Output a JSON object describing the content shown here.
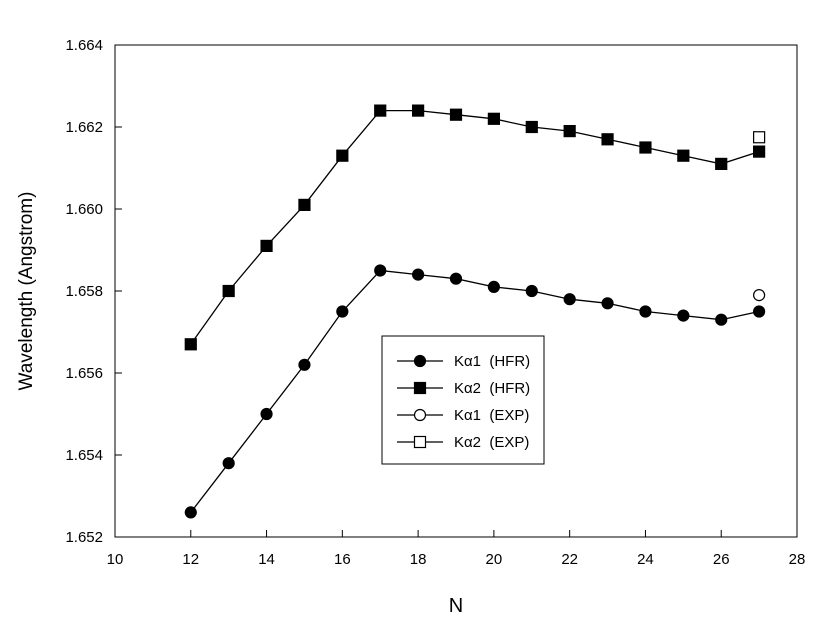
{
  "chart_data": {
    "type": "line",
    "xlabel": "N",
    "ylabel": "Wavelength (Angstrom)",
    "xlim": [
      10,
      28
    ],
    "ylim": [
      1.652,
      1.664
    ],
    "x_ticks": [
      "10",
      "12",
      "14",
      "16",
      "18",
      "20",
      "22",
      "24",
      "26",
      "28"
    ],
    "y_ticks": [
      "1.652",
      "1.654",
      "1.656",
      "1.658",
      "1.660",
      "1.662",
      "1.664"
    ],
    "grid": false,
    "legend_position": "center",
    "series": [
      {
        "name": "Kα1  (HFR)",
        "marker": "circle-filled",
        "line": true,
        "x": [
          12,
          13,
          14,
          15,
          16,
          17,
          18,
          19,
          20,
          21,
          22,
          23,
          24,
          25,
          26,
          27
        ],
        "values": [
          1.6526,
          1.6538,
          1.655,
          1.6562,
          1.6575,
          1.6585,
          1.6584,
          1.6583,
          1.6581,
          1.658,
          1.6578,
          1.6577,
          1.6575,
          1.6574,
          1.6573,
          1.6575
        ]
      },
      {
        "name": "Kα2  (HFR)",
        "marker": "square-filled",
        "line": true,
        "x": [
          12,
          13,
          14,
          15,
          16,
          17,
          18,
          19,
          20,
          21,
          22,
          23,
          24,
          25,
          26,
          27
        ],
        "values": [
          1.6567,
          1.658,
          1.6591,
          1.6601,
          1.6613,
          1.6624,
          1.6624,
          1.6623,
          1.6622,
          1.662,
          1.6619,
          1.6617,
          1.6615,
          1.6613,
          1.6611,
          1.6614
        ]
      },
      {
        "name": "Kα1  (EXP)",
        "marker": "circle-open",
        "line": false,
        "x": [
          27
        ],
        "values": [
          1.6579
        ]
      },
      {
        "name": "Kα2  (EXP)",
        "marker": "square-open",
        "line": false,
        "x": [
          27
        ],
        "values": [
          1.66175
        ]
      }
    ]
  }
}
